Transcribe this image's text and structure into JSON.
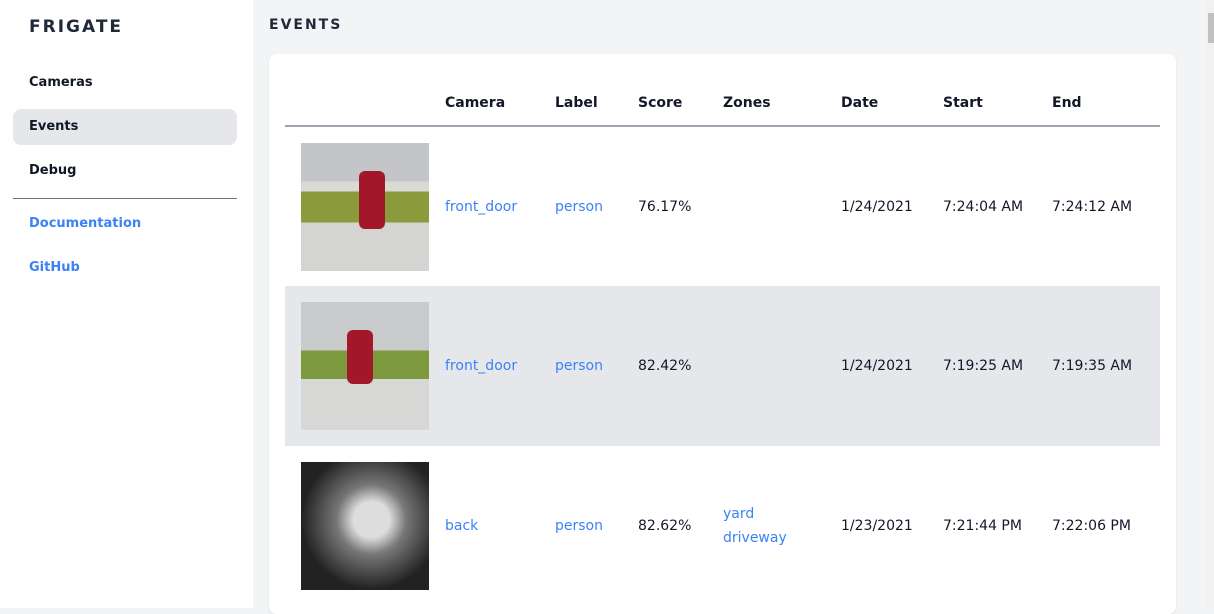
{
  "sidebar": {
    "logo": "FRIGATE",
    "items": [
      {
        "label": "Cameras"
      },
      {
        "label": "Events"
      },
      {
        "label": "Debug"
      }
    ],
    "links": [
      {
        "label": "Documentation"
      },
      {
        "label": "GitHub"
      }
    ]
  },
  "page": {
    "title": "EVENTS"
  },
  "table": {
    "headers": [
      "",
      "Camera",
      "Label",
      "Score",
      "Zones",
      "Date",
      "Start",
      "End"
    ],
    "rows": [
      {
        "camera": "front_door",
        "label": "person",
        "score": "76.17%",
        "zones": [
          "",
          ""
        ],
        "date": "1/24/2021",
        "start": "7:24:04 AM",
        "end": "7:24:12 AM"
      },
      {
        "camera": "front_door",
        "label": "person",
        "score": "82.42%",
        "zones": [
          "",
          ""
        ],
        "date": "1/24/2021",
        "start": "7:19:25 AM",
        "end": "7:19:35 AM"
      },
      {
        "camera": "back",
        "label": "person",
        "score": "82.62%",
        "zones": [
          "yard",
          "driveway"
        ],
        "date": "1/23/2021",
        "start": "7:21:44 PM",
        "end": "7:22:06 PM"
      }
    ]
  },
  "colors": {
    "link": "#3b82f6",
    "active_bg": "#e5e7eb"
  }
}
